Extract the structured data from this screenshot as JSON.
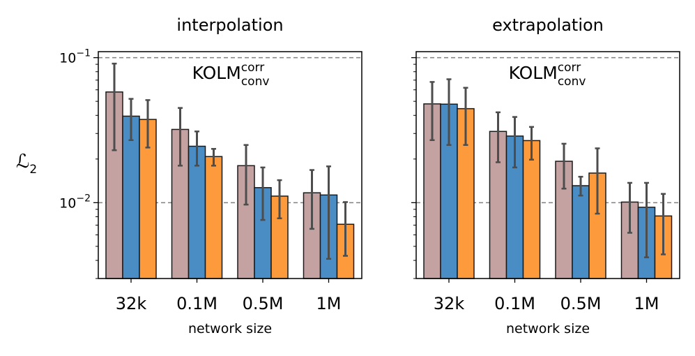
{
  "chart_data": [
    {
      "type": "bar",
      "title": "interpolation",
      "annotation": {
        "base": "KOLM",
        "sup": "corr",
        "sub": "conv"
      },
      "xlabel": "network size",
      "ylabel": "ℒ",
      "ylabel_sub": "2",
      "yscale": "log",
      "ylim": [
        0.003,
        0.11
      ],
      "yticks": [
        {
          "value": 0.1,
          "base": "10",
          "exp": "−1"
        },
        {
          "value": 0.01,
          "base": "10",
          "exp": "−2"
        }
      ],
      "reference_lines": [
        0.1,
        0.01
      ],
      "categories": [
        "32k",
        "0.1M",
        "0.5M",
        "1M"
      ],
      "series": [
        {
          "color": "#c4a2a2",
          "values": [
            0.058,
            0.032,
            0.018,
            0.0117
          ],
          "err_low": [
            0.023,
            0.018,
            0.0097,
            0.0066
          ],
          "err_high": [
            0.091,
            0.045,
            0.025,
            0.0168
          ]
        },
        {
          "color": "#4a8dc4",
          "values": [
            0.0395,
            0.0245,
            0.0127,
            0.0113
          ],
          "err_low": [
            0.027,
            0.018,
            0.0076,
            0.0041
          ],
          "err_high": [
            0.052,
            0.031,
            0.0175,
            0.0178
          ]
        },
        {
          "color": "#fc9a3c",
          "values": [
            0.0375,
            0.0208,
            0.0111,
            0.0071
          ],
          "err_low": [
            0.024,
            0.018,
            0.0078,
            0.0043
          ],
          "err_high": [
            0.051,
            0.0235,
            0.0143,
            0.0101
          ]
        }
      ]
    },
    {
      "type": "bar",
      "title": "extrapolation",
      "annotation": {
        "base": "KOLM",
        "sup": "corr",
        "sub": "conv"
      },
      "xlabel": "network size",
      "yscale": "log",
      "ylim": [
        0.003,
        0.11
      ],
      "yticks": [
        {
          "value": 0.1,
          "base": "",
          "exp": ""
        },
        {
          "value": 0.01,
          "base": "",
          "exp": ""
        }
      ],
      "reference_lines": [
        0.1,
        0.01
      ],
      "categories": [
        "32k",
        "0.1M",
        "0.5M",
        "1M"
      ],
      "series": [
        {
          "color": "#c4a2a2",
          "values": [
            0.048,
            0.031,
            0.0193,
            0.0101
          ],
          "err_low": [
            0.027,
            0.019,
            0.0125,
            0.0062
          ],
          "err_high": [
            0.068,
            0.042,
            0.0255,
            0.0137
          ]
        },
        {
          "color": "#4a8dc4",
          "values": [
            0.0478,
            0.0288,
            0.0131,
            0.0093
          ],
          "err_low": [
            0.025,
            0.0175,
            0.0112,
            0.0042
          ],
          "err_high": [
            0.071,
            0.039,
            0.0151,
            0.0137
          ]
        },
        {
          "color": "#fc9a3c",
          "values": [
            0.0445,
            0.0268,
            0.016,
            0.0081
          ],
          "err_low": [
            0.025,
            0.0198,
            0.0084,
            0.0044
          ],
          "err_high": [
            0.062,
            0.0333,
            0.0237,
            0.0115
          ]
        }
      ]
    }
  ]
}
